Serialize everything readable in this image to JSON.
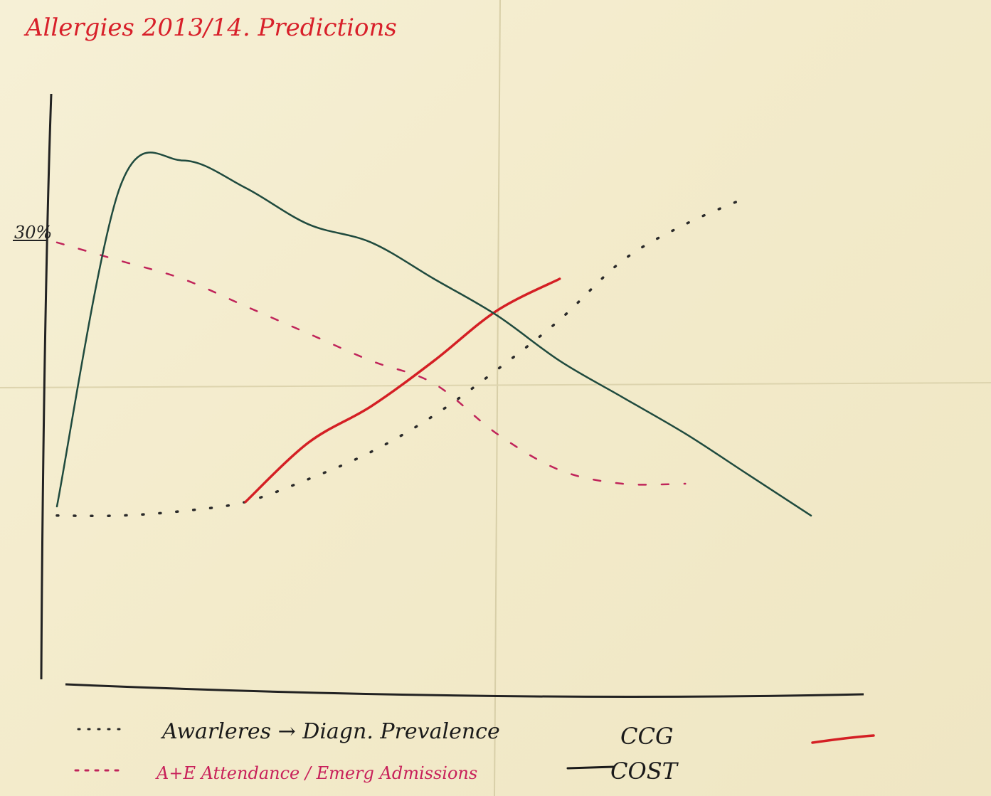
{
  "chart_data": {
    "type": "line",
    "title": "Allergies  2013/14. Predictions",
    "xlabel": "",
    "ylabel": "",
    "y_tick_label": "30%",
    "x": [
      0,
      1,
      2,
      3,
      4,
      5,
      6,
      7,
      8,
      9,
      10,
      11,
      12
    ],
    "ylim": [
      0,
      100
    ],
    "grid": false,
    "legend_position": "bottom",
    "series": [
      {
        "name": "Awareness → Diagn. Prevalence",
        "style": "black-dotted",
        "color": "#2a2a2a",
        "values": [
          18,
          18,
          19,
          21,
          26,
          32,
          40,
          50,
          61,
          74,
          82,
          88,
          null
        ]
      },
      {
        "name": "A&E Attendance / Emerg Admissions",
        "style": "red-dashed",
        "color": "#c0245a",
        "values": [
          78,
          74,
          70,
          64,
          58,
          52,
          47,
          36,
          28,
          25,
          25,
          null,
          null
        ]
      },
      {
        "name": "CCG",
        "style": "red-solid",
        "color": "#d41f24",
        "values": [
          null,
          null,
          null,
          21,
          34,
          42,
          52,
          63,
          70,
          null,
          null,
          null,
          null
        ]
      },
      {
        "name": "COST",
        "style": "green-solid",
        "color": "#1f4a3e",
        "values": [
          20,
          90,
          96,
          90,
          82,
          78,
          70,
          62,
          52,
          44,
          36,
          27,
          18
        ]
      }
    ]
  },
  "legend": {
    "awareness_label": "Awarleres → Diagn. Prevalence",
    "ae_label": "A+E Attendance / Emerg Admissions",
    "ccg_label": "CCG",
    "cost_label": "COST"
  }
}
